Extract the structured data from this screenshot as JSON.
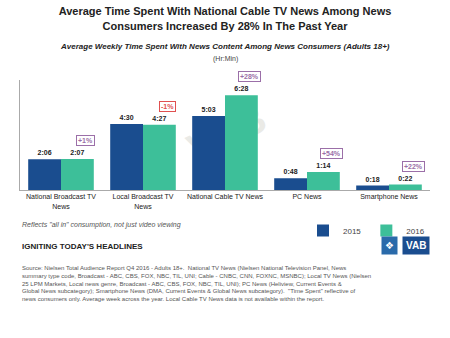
{
  "chart_data": {
    "type": "bar",
    "title": "Average Time Spent With National Cable TV News Among News\nConsumers Increased By 28% In The Past Year",
    "subtitle": "Average Weekly Time Spent With News Content Among News Consumers (Adults 18+)",
    "units": "(Hr:Min)",
    "categories": [
      "National Broadcast TV\nNews",
      "Local Broadcast TV\nNews",
      "National Cable TV News",
      "PC News",
      "Smartphone News"
    ],
    "series": [
      {
        "name": "2015",
        "color": "#1a4d8f",
        "values": [
          2.1,
          4.5,
          5.05,
          0.8,
          0.3
        ],
        "value_labels": [
          "2:06",
          "4:30",
          "5:03",
          "0:48",
          "0:18"
        ]
      },
      {
        "name": "2016",
        "color": "#3dbf99",
        "values": [
          2.117,
          4.45,
          6.467,
          1.233,
          0.367
        ],
        "value_labels": [
          "2:07",
          "4:27",
          "6:28",
          "1:14",
          "0:22"
        ]
      }
    ],
    "ylim": [
      0,
      7.5
    ],
    "tick_labels": "x",
    "grid": false,
    "legend": "bottom",
    "data_labels": true,
    "annotations": [
      {
        "text": "+1%",
        "category": "National Broadcast TV\nNews",
        "series": "2016",
        "color": "#9b6fa8"
      },
      {
        "text": "-1%",
        "category": "Local Broadcast TV\nNews",
        "series": "2016",
        "color": "#e05050"
      },
      {
        "text": "+28%",
        "category": "National Cable TV News",
        "series": "2016",
        "color": "#9b6fa8"
      },
      {
        "text": "+54%",
        "category": "PC News",
        "series": "2016",
        "color": "#9b6fa8"
      },
      {
        "text": "+22%",
        "category": "Smartphone News",
        "series": "2016",
        "color": "#9b6fa8"
      }
    ],
    "footnote": "Reflects \"all in\" consumption, not just video viewing",
    "footer_headline": "IGNITING TODAY'S HEADLINES",
    "footer_text": "Source: Nielsen Total Audience Report Q4 2016 - Adults 18+.  National TV News (Nielsen National Television Panel, News summary type code, Broadcast - ABC, CBS, FOX, NBC, TIL, UNI; Cable - CNBC, CNN, FOXNC, MSNBC); Local TV News (Nielsen 25 LPM Markets, Local news genre, Broadcast - ABC, CBS, FOX, NBC, TIL, UNI); PC News (Heliview, Current Events & Global News subcategory); Smartphone News (DMA, Current Events & Global News subcategory).  \"Time Spent\" reflective of news consumers only. Average week across the year. Local Cable TV News data is not available within the report.",
    "watermark": "VAB",
    "logo_icon": "❖",
    "logo_text": "VAB"
  }
}
